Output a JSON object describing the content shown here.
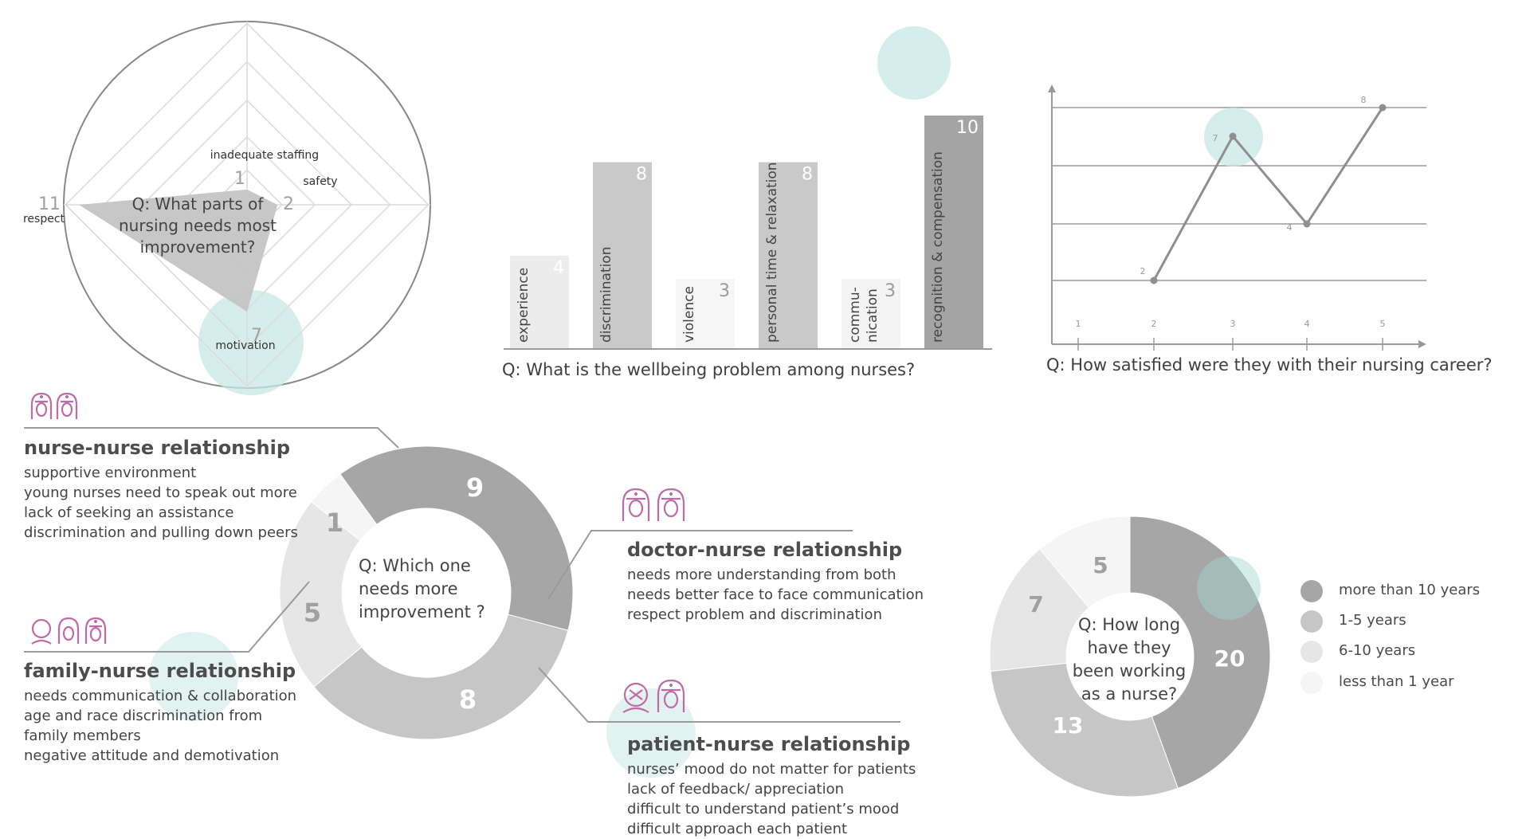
{
  "colors": {
    "accent": "#c8e8e4",
    "icon": "#c06aa8",
    "dark": "#a6a6a6",
    "mid": "#c6c6c6",
    "light": "#e6e6e6",
    "lightest": "#f6f6f6",
    "darkest": "#999999",
    "text": "#444444"
  },
  "chart_data": [
    {
      "type": "radar",
      "id": "radar",
      "center_text": "Q: What parts of nursing needs most improvement?",
      "axes": [
        "inadequate staffing",
        "safety",
        "motivation",
        "respect"
      ],
      "values": [
        1,
        2,
        7,
        11
      ],
      "value_labels": [
        "1",
        "2",
        "7",
        "11"
      ],
      "highlight": "motivation"
    },
    {
      "type": "bar",
      "id": "wellbeing",
      "title": "Q: What is the wellbeing problem among nurses?",
      "categories": [
        "experience",
        "discrimination",
        "violence",
        "personal time & relaxation",
        "commu-\nnication",
        "recognition & compensation"
      ],
      "values": [
        4,
        8,
        3,
        8,
        3,
        10
      ],
      "highlight": "recognition & compensation"
    },
    {
      "type": "line",
      "id": "satisfaction",
      "title": "Q: How satisfied were they with their nursing career?",
      "x": [
        2,
        3,
        4,
        5
      ],
      "y": [
        2,
        7,
        4,
        8
      ],
      "xticks": [
        "1",
        "2",
        "3",
        "4",
        "5"
      ],
      "highlight_x": 3
    },
    {
      "type": "pie",
      "id": "relationship",
      "center_text": "Q: Which one needs more improvement ?",
      "categories": [
        "nurse-nurse relationship",
        "doctor-nurse relationship",
        "patient-nurse relationship",
        "family-nurse relationship"
      ],
      "values": [
        9,
        8,
        5,
        1
      ],
      "value_labels": [
        "9",
        "8",
        "5",
        "1"
      ]
    },
    {
      "type": "pie",
      "id": "experience_years",
      "center_text": "Q: How long have they been working as a nurse?",
      "categories": [
        "more than 10 years",
        "1-5 years",
        "6-10 years",
        "less than 1 year"
      ],
      "values": [
        20,
        13,
        7,
        5
      ],
      "value_labels": [
        "20",
        "13",
        "7",
        "5"
      ],
      "legend_position": "right"
    }
  ],
  "relationships": {
    "nurse": {
      "title": "nurse-nurse relationship",
      "lines": [
        "supportive environment",
        "young nurses need to speak out more",
        "lack of seeking an assistance",
        "discrimination and pulling down peers"
      ]
    },
    "family": {
      "title": "family-nurse relationship",
      "lines": [
        "needs communication & collaboration",
        "age and race discrimination from",
        "family members",
        "negative attitude and demotivation"
      ]
    },
    "doctor": {
      "title": "doctor-nurse relationship",
      "lines": [
        "needs more understanding from both",
        "needs better face to face communication",
        "respect problem and discrimination"
      ]
    },
    "patient": {
      "title": "patient-nurse relationship",
      "lines": [
        "nurses’ mood do not matter for patients",
        "lack of feedback/ appreciation",
        "difficult to understand patient’s mood",
        "difficult approach each patient"
      ]
    }
  },
  "icons": {
    "nurse": "nurse-pair-icon",
    "family": "family-icon",
    "doctor": "doctor-nurse-icon",
    "patient": "patient-nurse-icon"
  }
}
